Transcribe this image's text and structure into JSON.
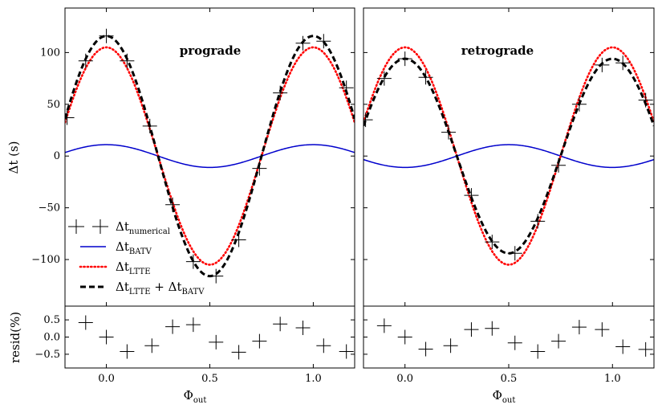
{
  "chart_data": [
    {
      "type": "line",
      "title": "prograde",
      "xlabel": "Φ",
      "xlabel_sub": "out",
      "ylabel": "Δt (s)",
      "xlim": [
        -0.2,
        1.2
      ],
      "ylim": [
        -145,
        143
      ],
      "xticks": [
        0.0,
        0.5,
        1.0
      ],
      "xtick_labels": [
        "0.0",
        "0.5",
        "1.0"
      ],
      "yticks": [
        -100,
        -50,
        0,
        50,
        100
      ],
      "ytick_labels": [
        "−100",
        "−50",
        "0",
        "50",
        "100"
      ],
      "model": {
        "lte_amp": 105,
        "batv_amp": 11,
        "batv_sign": 1
      },
      "series": [
        {
          "name": "Δt_numerical",
          "style": "markers",
          "color": "#000000"
        },
        {
          "name": "Δt_BATV",
          "style": "solid",
          "color": "#0000cc"
        },
        {
          "name": "Δt_LTTE",
          "style": "dotted",
          "color": "#ff0000"
        },
        {
          "name": "Δt_LTTE + Δt_BATV",
          "style": "dashed",
          "color": "#000000"
        }
      ],
      "numerical_points": [
        {
          "x": -0.19,
          "y": 37
        },
        {
          "x": -0.1,
          "y": 92
        },
        {
          "x": 0.0,
          "y": 116
        },
        {
          "x": 0.1,
          "y": 92
        },
        {
          "x": 0.21,
          "y": 29
        },
        {
          "x": 0.32,
          "y": -47
        },
        {
          "x": 0.42,
          "y": -102
        },
        {
          "x": 0.53,
          "y": -116
        },
        {
          "x": 0.64,
          "y": -81
        },
        {
          "x": 0.74,
          "y": -12
        },
        {
          "x": 0.84,
          "y": 61
        },
        {
          "x": 0.95,
          "y": 109
        },
        {
          "x": 1.05,
          "y": 111
        },
        {
          "x": 1.16,
          "y": 66
        }
      ],
      "residuals": {
        "ylabel": "resid(%)",
        "ylim": [
          -0.9,
          0.9
        ],
        "yticks": [
          0.5,
          0.0,
          -0.5
        ],
        "ytick_labels": [
          "0.5",
          "0.0",
          "−0.5"
        ],
        "points": [
          {
            "x": -0.1,
            "y": 0.42
          },
          {
            "x": 0.0,
            "y": 0.0
          },
          {
            "x": 0.1,
            "y": -0.42
          },
          {
            "x": 0.22,
            "y": -0.25
          },
          {
            "x": 0.32,
            "y": 0.3
          },
          {
            "x": 0.42,
            "y": 0.36
          },
          {
            "x": 0.53,
            "y": -0.15
          },
          {
            "x": 0.64,
            "y": -0.44
          },
          {
            "x": 0.74,
            "y": -0.12
          },
          {
            "x": 0.84,
            "y": 0.38
          },
          {
            "x": 0.95,
            "y": 0.27
          },
          {
            "x": 1.05,
            "y": -0.25
          },
          {
            "x": 1.16,
            "y": -0.42
          }
        ]
      }
    },
    {
      "type": "line",
      "title": "retrograde",
      "xlabel": "Φ",
      "xlabel_sub": "out",
      "xlim": [
        -0.2,
        1.2
      ],
      "ylim": [
        -145,
        143
      ],
      "xticks": [
        0.0,
        0.5,
        1.0
      ],
      "xtick_labels": [
        "0.0",
        "0.5",
        "1.0"
      ],
      "model": {
        "lte_amp": 105,
        "batv_amp": 11,
        "batv_sign": -1
      },
      "series": [
        {
          "name": "Δt_numerical",
          "style": "markers",
          "color": "#000000"
        },
        {
          "name": "Δt_BATV",
          "style": "solid",
          "color": "#0000cc"
        },
        {
          "name": "Δt_LTTE",
          "style": "dotted",
          "color": "#ff0000"
        },
        {
          "name": "Δt_LTTE + Δt_BATV",
          "style": "dashed",
          "color": "#000000"
        }
      ],
      "numerical_points": [
        {
          "x": -0.19,
          "y": 35
        },
        {
          "x": -0.1,
          "y": 75
        },
        {
          "x": 0.0,
          "y": 94
        },
        {
          "x": 0.1,
          "y": 76
        },
        {
          "x": 0.21,
          "y": 23
        },
        {
          "x": 0.32,
          "y": -38
        },
        {
          "x": 0.42,
          "y": -83
        },
        {
          "x": 0.53,
          "y": -94
        },
        {
          "x": 0.64,
          "y": -63
        },
        {
          "x": 0.74,
          "y": -9
        },
        {
          "x": 0.84,
          "y": 50
        },
        {
          "x": 0.95,
          "y": 88
        },
        {
          "x": 1.05,
          "y": 90
        },
        {
          "x": 1.16,
          "y": 54
        }
      ],
      "residuals": {
        "ylim": [
          -0.9,
          0.9
        ],
        "yticks": [
          0.5,
          0.0,
          -0.5
        ],
        "points": [
          {
            "x": -0.1,
            "y": 0.33
          },
          {
            "x": 0.0,
            "y": 0.0
          },
          {
            "x": 0.1,
            "y": -0.35
          },
          {
            "x": 0.22,
            "y": -0.25
          },
          {
            "x": 0.32,
            "y": 0.22
          },
          {
            "x": 0.42,
            "y": 0.25
          },
          {
            "x": 0.53,
            "y": -0.17
          },
          {
            "x": 0.64,
            "y": -0.42
          },
          {
            "x": 0.74,
            "y": -0.12
          },
          {
            "x": 0.84,
            "y": 0.29
          },
          {
            "x": 0.95,
            "y": 0.22
          },
          {
            "x": 1.05,
            "y": -0.28
          },
          {
            "x": 1.16,
            "y": -0.36
          }
        ]
      }
    }
  ],
  "legend": {
    "placement": "lower-left of left panel",
    "items": [
      {
        "symbol": "Δt",
        "sub": "numerical",
        "style": "markers",
        "color": "#000000"
      },
      {
        "symbol": "Δt",
        "sub": "BATV",
        "style": "solid",
        "color": "#0000cc"
      },
      {
        "symbol": "Δt",
        "sub": "LTTE",
        "style": "dotted",
        "color": "#ff0000"
      },
      {
        "symbol": "Δt",
        "sub": "LTTE",
        "plus": " + Δt",
        "sub2": "BATV",
        "style": "dashed",
        "color": "#000000"
      }
    ]
  }
}
